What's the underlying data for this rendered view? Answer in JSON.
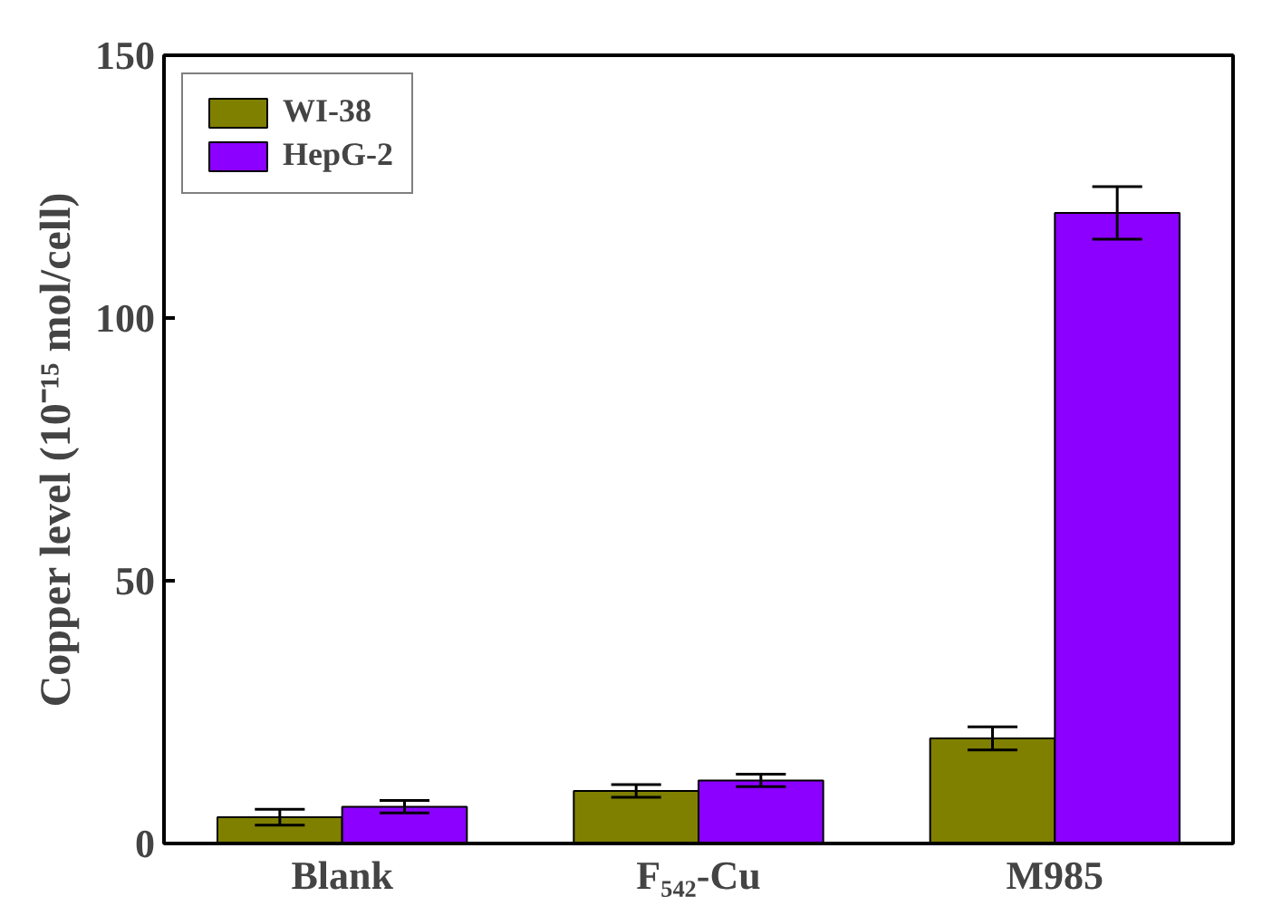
{
  "chart_data": {
    "type": "bar",
    "ylabel": "Copper level (10⁻¹⁵ mol/cell)",
    "categories": [
      "Blank",
      "F₅₄₂-Cu",
      "M985"
    ],
    "series": [
      {
        "name": "WI-38",
        "color": "#808000",
        "values": [
          5,
          10,
          20
        ],
        "errors": [
          1.5,
          1.2,
          2.2
        ]
      },
      {
        "name": "HepG-2",
        "color": "#8b00ff",
        "values": [
          7,
          12,
          120
        ],
        "errors": [
          1.2,
          1.2,
          5
        ]
      }
    ],
    "ylim": [
      0,
      150
    ],
    "yticks": [
      0,
      50,
      100,
      150
    ],
    "grid": false,
    "legend": "top left"
  }
}
